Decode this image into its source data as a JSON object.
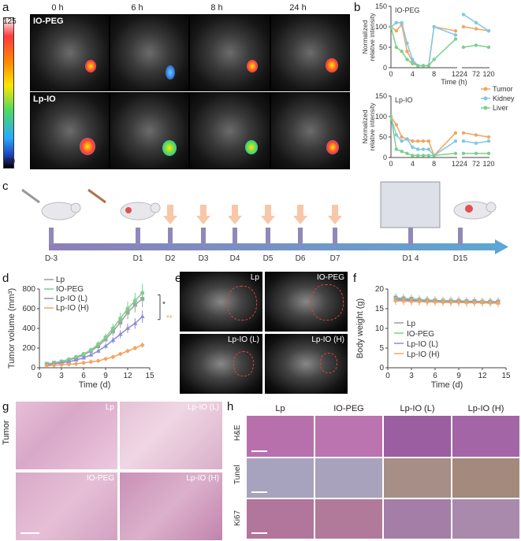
{
  "panels": {
    "a": "a",
    "b": "b",
    "c": "c",
    "d": "d",
    "e": "e",
    "f": "f",
    "g": "g",
    "h": "h"
  },
  "panel_a": {
    "timepoints": [
      "0 h",
      "6 h",
      "8 h",
      "24 h"
    ],
    "rows": [
      "IO-PEG",
      "Lp-IO"
    ],
    "scale_max": "125",
    "scale_min": "30"
  },
  "panel_c": {
    "days": [
      "D-3",
      "D1",
      "D2",
      "D3",
      "D4",
      "D5",
      "D6",
      "D7",
      "D1 4",
      "D15"
    ]
  },
  "panel_e": {
    "labels": [
      "Lp",
      "IO-PEG",
      "Lp-IO (L)",
      "Lp-IO (H)"
    ]
  },
  "panel_g": {
    "side_label": "Tumor",
    "labels": [
      "Lp",
      "Lp-IO (L)",
      "IO-PEG",
      "Lp-IO (H)"
    ]
  },
  "panel_h": {
    "columns": [
      "Lp",
      "IO-PEG",
      "Lp-IO (L)",
      "Lp-IO (H)"
    ],
    "rows": [
      "H&E",
      "Tunel",
      "Ki67"
    ]
  },
  "colors": {
    "tumor": "#f4a460",
    "kidney": "#7ec8e3",
    "liver": "#7dcf8e",
    "lp": "#9e9e9e",
    "iopeg": "#7dcf8e",
    "lpiol": "#8c8cd9",
    "lpioh": "#f4a460"
  },
  "chart_data": [
    {
      "id": "b-top",
      "type": "line",
      "title": "IO-PEG",
      "xlabel": "Time (h)",
      "ylabel": "Normalized relative intensity",
      "x": [
        0,
        1,
        2,
        3,
        4,
        5,
        6,
        7,
        8,
        12,
        24,
        72,
        120
      ],
      "xticks": [
        "0",
        "4",
        "8",
        "12",
        "24",
        "72",
        "120"
      ],
      "yticks": [
        0,
        50,
        100,
        150
      ],
      "ylim": [
        0,
        150
      ],
      "series": [
        {
          "name": "Tumor",
          "values": [
            100,
            90,
            105,
            40,
            15,
            5,
            5,
            5,
            100,
            90,
            100,
            95,
            90
          ]
        },
        {
          "name": "Kidney",
          "values": [
            100,
            110,
            110,
            60,
            20,
            5,
            5,
            5,
            100,
            80,
            130,
            110,
            90
          ]
        },
        {
          "name": "Liver",
          "values": [
            100,
            50,
            40,
            20,
            10,
            5,
            5,
            5,
            20,
            70,
            50,
            55,
            50
          ]
        }
      ]
    },
    {
      "id": "b-bottom",
      "type": "line",
      "title": "Lp-IO",
      "xlabel": "",
      "ylabel": "Normalized relative intensity",
      "x": [
        0,
        1,
        2,
        3,
        4,
        5,
        6,
        7,
        8,
        12,
        24,
        72,
        120
      ],
      "xticks": [
        "0",
        "4",
        "8",
        "12",
        "24",
        "72",
        "120"
      ],
      "yticks": [
        0,
        50,
        100,
        150
      ],
      "ylim": [
        0,
        150
      ],
      "series": [
        {
          "name": "Tumor",
          "values": [
            100,
            80,
            50,
            45,
            40,
            40,
            40,
            40,
            5,
            60,
            60,
            55,
            50
          ]
        },
        {
          "name": "Kidney",
          "values": [
            100,
            55,
            40,
            45,
            25,
            20,
            20,
            20,
            5,
            40,
            40,
            35,
            40
          ]
        },
        {
          "name": "Liver",
          "values": [
            100,
            20,
            15,
            10,
            5,
            5,
            5,
            5,
            5,
            10,
            10,
            10,
            10
          ]
        }
      ]
    },
    {
      "id": "d",
      "type": "line",
      "xlabel": "Time (d)",
      "ylabel": "Tumor volume (mm³)",
      "xticks": [
        0,
        3,
        6,
        9,
        12,
        15
      ],
      "yticks": [
        0,
        200,
        400,
        600,
        800
      ],
      "xlim": [
        0,
        15
      ],
      "ylim": [
        0,
        800
      ],
      "x": [
        1,
        2,
        3,
        4,
        5,
        6,
        7,
        8,
        9,
        10,
        11,
        12,
        13,
        14
      ],
      "annotations": [
        "*",
        "**"
      ],
      "series": [
        {
          "name": "Lp",
          "values": [
            40,
            50,
            60,
            80,
            100,
            130,
            170,
            220,
            290,
            370,
            460,
            560,
            640,
            700
          ]
        },
        {
          "name": "IO-PEG",
          "values": [
            40,
            50,
            65,
            85,
            110,
            140,
            180,
            240,
            310,
            400,
            500,
            600,
            680,
            760
          ]
        },
        {
          "name": "Lp-IO (L)",
          "values": [
            30,
            40,
            50,
            60,
            80,
            100,
            130,
            170,
            220,
            280,
            340,
            400,
            450,
            520
          ]
        },
        {
          "name": "Lp-IO (H)",
          "values": [
            20,
            25,
            30,
            35,
            40,
            50,
            60,
            70,
            90,
            110,
            140,
            170,
            200,
            230
          ]
        }
      ]
    },
    {
      "id": "f",
      "type": "line",
      "xlabel": "Time (d)",
      "ylabel": "Body weight (g)",
      "xticks": [
        0,
        3,
        6,
        9,
        12,
        15
      ],
      "yticks": [
        0,
        5,
        10,
        15,
        20
      ],
      "xlim": [
        0,
        15
      ],
      "ylim": [
        0,
        20
      ],
      "x": [
        1,
        2,
        3,
        4,
        5,
        6,
        7,
        8,
        9,
        10,
        11,
        12,
        13,
        14
      ],
      "series": [
        {
          "name": "Lp",
          "values": [
            17.8,
            17.6,
            17.5,
            17.3,
            17.2,
            17.1,
            17.0,
            17.0,
            17.0,
            16.9,
            16.9,
            16.8,
            16.8,
            16.8
          ]
        },
        {
          "name": "IO-PEG",
          "values": [
            17.5,
            17.4,
            17.3,
            17.2,
            17.1,
            17.0,
            16.9,
            16.9,
            16.8,
            16.8,
            16.7,
            16.7,
            16.6,
            16.5
          ]
        },
        {
          "name": "Lp-IO (L)",
          "values": [
            17.3,
            17.2,
            17.1,
            17.0,
            16.9,
            16.9,
            16.8,
            16.8,
            16.8,
            16.7,
            16.7,
            16.6,
            16.6,
            16.5
          ]
        },
        {
          "name": "Lp-IO (H)",
          "values": [
            17.0,
            16.9,
            16.8,
            16.8,
            16.7,
            16.7,
            16.6,
            16.6,
            16.6,
            16.5,
            16.5,
            16.5,
            16.4,
            16.4
          ]
        }
      ]
    }
  ]
}
